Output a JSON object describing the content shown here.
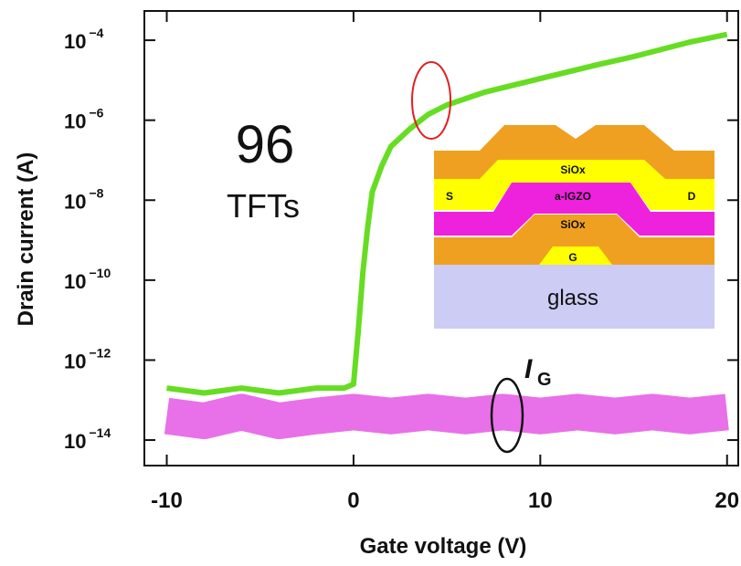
{
  "chart_data": {
    "type": "line",
    "xlabel": "Gate voltage (V)",
    "ylabel": "Drain current (A)",
    "log_y": true,
    "xlim": [
      -11.2,
      20.6
    ],
    "ylim": [
      2.3e-15,
      0.00054
    ],
    "xticks": [
      -10,
      0,
      10,
      20
    ],
    "yticks": [
      {
        "value": 0.0001,
        "label": "10−4"
      },
      {
        "value": 1e-06,
        "label": "10−6"
      },
      {
        "value": 1e-08,
        "label": "10−8"
      },
      {
        "value": 1e-10,
        "label": "10−10"
      },
      {
        "value": 1e-12,
        "label": "10−12"
      },
      {
        "value": 1e-14,
        "label": "10−14"
      }
    ],
    "series": [
      {
        "color": "#e040e0",
        "x": [
          -10,
          -8,
          -6,
          -4,
          -2,
          0,
          2,
          4,
          6,
          8,
          10,
          12,
          14,
          16,
          18,
          20
        ],
        "values": [
          4e-14,
          3e-14,
          5e-14,
          3e-14,
          4e-14,
          5e-14,
          4e-14,
          5e-14,
          4e-14,
          5e-14,
          4e-14,
          5e-14,
          4e-14,
          5e-14,
          4e-14,
          5e-14
        ]
      },
      {
        "color": "#66dd22",
        "x": [
          -10,
          -8,
          -6,
          -4,
          -2,
          -0.5,
          0,
          0.25,
          0.5,
          0.75,
          1,
          1.5,
          2,
          3,
          4,
          5,
          7,
          10,
          13,
          15,
          18,
          20
        ],
        "values": [
          2e-13,
          1.5e-13,
          2e-13,
          1.5e-13,
          2e-13,
          2e-13,
          2.5e-13,
          5e-12,
          1.6e-10,
          2e-09,
          1.6e-08,
          7e-08,
          2.2e-07,
          6e-07,
          1.4e-06,
          2.4e-06,
          5e-06,
          1.1e-05,
          2.4e-05,
          3.9e-05,
          9e-05,
          0.00014
        ]
      }
    ],
    "annotations": {
      "count": "96",
      "unit": "TFTs",
      "gate_current": "I",
      "gate_current_sub": "G"
    },
    "inset": {
      "top_insulator": "SiOx",
      "source": "S",
      "channel": "a-IGZO",
      "drain": "D",
      "gate_insulator": "SiOx",
      "gate": "G",
      "substrate": "glass"
    }
  }
}
